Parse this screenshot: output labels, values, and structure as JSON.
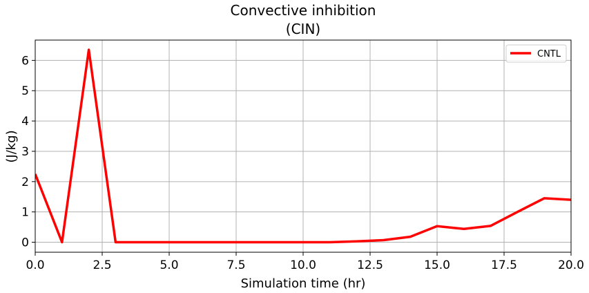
{
  "chart_data": {
    "type": "line",
    "title": "Convective inhibition",
    "subtitle": "(CIN)",
    "xlabel": "Simulation time (hr)",
    "ylabel": "(J/kg)",
    "xlim": [
      0,
      20
    ],
    "ylim": [
      -0.33,
      6.67
    ],
    "xticks": [
      0,
      2.5,
      5,
      7.5,
      10,
      12.5,
      15,
      17.5,
      20
    ],
    "xtick_labels": [
      "0.0",
      "2.5",
      "5.0",
      "7.5",
      "10.0",
      "12.5",
      "15.0",
      "17.5",
      "20.0"
    ],
    "yticks": [
      0,
      1,
      2,
      3,
      4,
      5,
      6
    ],
    "ytick_labels": [
      "0",
      "1",
      "2",
      "3",
      "4",
      "5",
      "6"
    ],
    "grid": true,
    "legend_position": "upper right",
    "series": [
      {
        "name": "CNTL",
        "color": "#ff0000",
        "x": [
          0,
          1,
          2,
          3,
          4,
          5,
          6,
          7,
          8,
          9,
          10,
          11,
          12,
          13,
          14,
          15,
          16,
          17,
          18,
          19,
          20
        ],
        "y": [
          2.25,
          0.0,
          6.35,
          0.0,
          0.0,
          0.0,
          0.0,
          0.0,
          0.0,
          0.0,
          0.0,
          0.0,
          0.03,
          0.07,
          0.18,
          0.53,
          0.44,
          0.54,
          1.0,
          1.45,
          1.4
        ]
      }
    ]
  }
}
